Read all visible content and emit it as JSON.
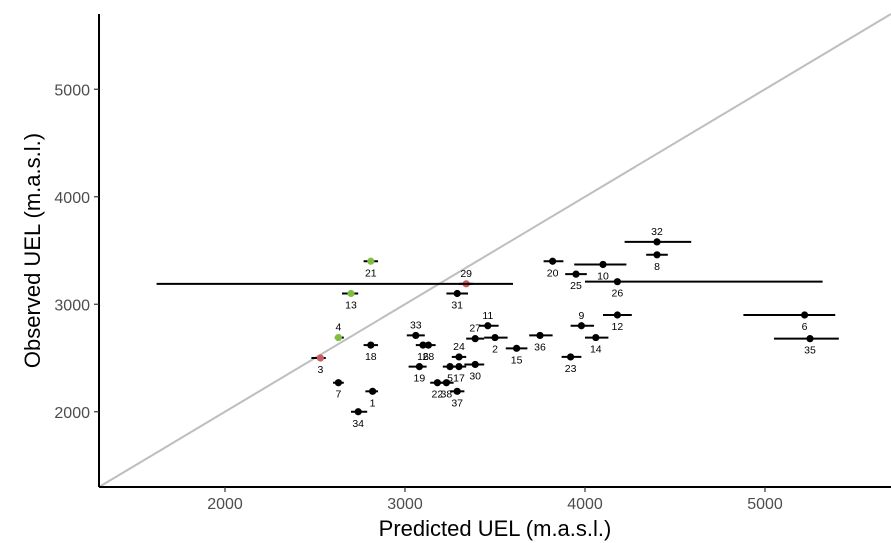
{
  "chart_data": {
    "type": "scatter",
    "xlabel": "Predicted UEL (m.a.s.l.)",
    "ylabel": "Observed UEL (m.a.s.l.)",
    "xlim": [
      1300,
      5700
    ],
    "ylim": [
      1300,
      5700
    ],
    "x_ticks": [
      2000,
      3000,
      4000,
      5000
    ],
    "y_ticks": [
      2000,
      3000,
      4000,
      5000
    ],
    "reference_line": "y = x",
    "grid": false,
    "colors": {
      "default": "#000000",
      "green": "#7fbf3f",
      "red": "#cd5c5c",
      "reference": "#bebebe"
    },
    "points": [
      {
        "id": "1",
        "x": 2820,
        "y": 2190,
        "xmin": 2780,
        "xmax": 2850,
        "color": "black",
        "label_pos": "below"
      },
      {
        "id": "2",
        "x": 3500,
        "y": 2690,
        "xmin": 3440,
        "xmax": 3570,
        "color": "black",
        "label_pos": "below"
      },
      {
        "id": "3",
        "x": 2530,
        "y": 2500,
        "xmin": 2480,
        "xmax": 2560,
        "color": "red",
        "label_pos": "below"
      },
      {
        "id": "4",
        "x": 2630,
        "y": 2690,
        "xmin": 2610,
        "xmax": 2660,
        "color": "green",
        "label_pos": "above"
      },
      {
        "id": "5",
        "x": 3250,
        "y": 2420,
        "xmin": 3210,
        "xmax": 3290,
        "color": "black",
        "label_pos": "below"
      },
      {
        "id": "6",
        "x": 5220,
        "y": 2900,
        "xmin": 4880,
        "xmax": 5390,
        "color": "black",
        "label_pos": "below"
      },
      {
        "id": "7",
        "x": 2630,
        "y": 2270,
        "xmin": 2600,
        "xmax": 2660,
        "color": "black",
        "label_pos": "below"
      },
      {
        "id": "8",
        "x": 4400,
        "y": 3460,
        "xmin": 4340,
        "xmax": 4460,
        "color": "black",
        "label_pos": "below"
      },
      {
        "id": "9",
        "x": 3980,
        "y": 2800,
        "xmin": 3920,
        "xmax": 4050,
        "color": "black",
        "label_pos": "above"
      },
      {
        "id": "10",
        "x": 4100,
        "y": 3370,
        "xmin": 3940,
        "xmax": 4230,
        "color": "black",
        "label_pos": "below"
      },
      {
        "id": "11",
        "x": 3460,
        "y": 2800,
        "xmin": 3410,
        "xmax": 3520,
        "color": "black",
        "label_pos": "above"
      },
      {
        "id": "12",
        "x": 4180,
        "y": 2900,
        "xmin": 4100,
        "xmax": 4260,
        "color": "black",
        "label_pos": "below"
      },
      {
        "id": "13",
        "x": 2700,
        "y": 3100,
        "xmin": 2650,
        "xmax": 2740,
        "color": "green",
        "label_pos": "below"
      },
      {
        "id": "14",
        "x": 4060,
        "y": 2690,
        "xmin": 4000,
        "xmax": 4130,
        "color": "black",
        "label_pos": "below"
      },
      {
        "id": "15",
        "x": 3620,
        "y": 2590,
        "xmin": 3560,
        "xmax": 3680,
        "color": "black",
        "label_pos": "below"
      },
      {
        "id": "16",
        "x": 3100,
        "y": 2620,
        "xmin": 3060,
        "xmax": 3140,
        "color": "black",
        "label_pos": "below"
      },
      {
        "id": "17",
        "x": 3300,
        "y": 2420,
        "xmin": 3260,
        "xmax": 3340,
        "color": "black",
        "label_pos": "below"
      },
      {
        "id": "18",
        "x": 2810,
        "y": 2620,
        "xmin": 2770,
        "xmax": 2850,
        "color": "black",
        "label_pos": "below"
      },
      {
        "id": "19",
        "x": 3080,
        "y": 2420,
        "xmin": 3020,
        "xmax": 3120,
        "color": "black",
        "label_pos": "below"
      },
      {
        "id": "20",
        "x": 3820,
        "y": 3400,
        "xmin": 3770,
        "xmax": 3880,
        "color": "black",
        "label_pos": "below"
      },
      {
        "id": "21",
        "x": 2810,
        "y": 3400,
        "xmin": 2770,
        "xmax": 2850,
        "color": "green",
        "label_pos": "below"
      },
      {
        "id": "22",
        "x": 3180,
        "y": 2270,
        "xmin": 3140,
        "xmax": 3220,
        "color": "black",
        "label_pos": "below"
      },
      {
        "id": "23",
        "x": 3920,
        "y": 2510,
        "xmin": 3870,
        "xmax": 3980,
        "color": "black",
        "label_pos": "below"
      },
      {
        "id": "24",
        "x": 3300,
        "y": 2510,
        "xmin": 3260,
        "xmax": 3340,
        "color": "black",
        "label_pos": "above"
      },
      {
        "id": "25",
        "x": 3950,
        "y": 3280,
        "xmin": 3890,
        "xmax": 4010,
        "color": "black",
        "label_pos": "below"
      },
      {
        "id": "26",
        "x": 4180,
        "y": 3210,
        "xmin": 4000,
        "xmax": 5320,
        "color": "black",
        "label_pos": "below"
      },
      {
        "id": "27",
        "x": 3390,
        "y": 2680,
        "xmin": 3340,
        "xmax": 3440,
        "color": "black",
        "label_pos": "above"
      },
      {
        "id": "28",
        "x": 3130,
        "y": 2620,
        "xmin": 3090,
        "xmax": 3170,
        "color": "black",
        "label_pos": "below"
      },
      {
        "id": "29",
        "x": 3340,
        "y": 3190,
        "xmin": 3300,
        "xmax": 3380,
        "color": "red",
        "label_pos": "above"
      },
      {
        "id": "30",
        "x": 3390,
        "y": 2440,
        "xmin": 3330,
        "xmax": 3440,
        "color": "black",
        "label_pos": "below"
      },
      {
        "id": "31",
        "x": 3290,
        "y": 3100,
        "xmin": 3230,
        "xmax": 3350,
        "color": "black",
        "label_pos": "below"
      },
      {
        "id": "32",
        "x": 4400,
        "y": 3580,
        "xmin": 4220,
        "xmax": 4590,
        "color": "black",
        "label_pos": "above"
      },
      {
        "id": "33",
        "x": 3060,
        "y": 2710,
        "xmin": 3010,
        "xmax": 3110,
        "color": "black",
        "label_pos": "above"
      },
      {
        "id": "34",
        "x": 2740,
        "y": 2000,
        "xmin": 2700,
        "xmax": 2790,
        "color": "black",
        "label_pos": "below"
      },
      {
        "id": "35",
        "x": 5250,
        "y": 2680,
        "xmin": 5050,
        "xmax": 5410,
        "color": "black",
        "label_pos": "below"
      },
      {
        "id": "36",
        "x": 3750,
        "y": 2710,
        "xmin": 3690,
        "xmax": 3820,
        "color": "black",
        "label_pos": "below"
      },
      {
        "id": "37",
        "x": 3290,
        "y": 2190,
        "xmin": 3250,
        "xmax": 3330,
        "color": "black",
        "label_pos": "below"
      },
      {
        "id": "38",
        "x": 3230,
        "y": 2270,
        "xmin": 3190,
        "xmax": 3270,
        "color": "black",
        "label_pos": "below"
      },
      {
        "id": "h",
        "x": 2600,
        "y": 3190,
        "xmin": 1620,
        "xmax": 3600,
        "color": "black",
        "no_point": true
      }
    ]
  }
}
